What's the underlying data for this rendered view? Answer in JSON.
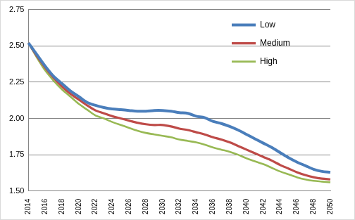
{
  "chart_data": {
    "type": "line",
    "categories": [
      "2014",
      null,
      "2016",
      null,
      "2018",
      null,
      "2020",
      null,
      "2022",
      null,
      "2024",
      null,
      "2026",
      null,
      "2028",
      null,
      "2030",
      null,
      "2032",
      null,
      "2034",
      null,
      "2036",
      null,
      "2038",
      null,
      "2040",
      null,
      "2042",
      null,
      "2044",
      null,
      "2046",
      null,
      "2048",
      null,
      "2050"
    ],
    "series": [
      {
        "name": "Low",
        "color": "#4a7ebb",
        "values": [
          2.52,
          2.44,
          2.36,
          2.29,
          2.24,
          2.19,
          2.15,
          2.11,
          2.09,
          2.075,
          2.065,
          2.06,
          2.055,
          2.05,
          2.05,
          2.055,
          2.055,
          2.05,
          2.04,
          2.035,
          2.015,
          2.005,
          1.98,
          1.965,
          1.945,
          1.92,
          1.89,
          1.86,
          1.83,
          1.8,
          1.765,
          1.73,
          1.7,
          1.675,
          1.65,
          1.635,
          1.63
        ]
      },
      {
        "name": "Medium",
        "color": "#be4b48",
        "values": [
          2.52,
          2.43,
          2.35,
          2.28,
          2.22,
          2.17,
          2.13,
          2.09,
          2.055,
          2.035,
          2.015,
          2.0,
          1.985,
          1.97,
          1.96,
          1.955,
          1.955,
          1.945,
          1.93,
          1.92,
          1.905,
          1.89,
          1.87,
          1.855,
          1.835,
          1.81,
          1.785,
          1.76,
          1.735,
          1.71,
          1.68,
          1.655,
          1.63,
          1.61,
          1.595,
          1.585,
          1.58
        ]
      },
      {
        "name": "High",
        "color": "#98b954",
        "values": [
          2.52,
          2.42,
          2.33,
          2.26,
          2.2,
          2.15,
          2.1,
          2.06,
          2.02,
          2.0,
          1.975,
          1.955,
          1.935,
          1.915,
          1.9,
          1.89,
          1.88,
          1.87,
          1.855,
          1.845,
          1.835,
          1.82,
          1.8,
          1.785,
          1.77,
          1.75,
          1.725,
          1.705,
          1.685,
          1.66,
          1.635,
          1.615,
          1.595,
          1.58,
          1.57,
          1.565,
          1.56
        ]
      }
    ],
    "ylim": [
      1.5,
      2.75
    ],
    "yticks": [
      {
        "value": 1.5,
        "label": "1.50"
      },
      {
        "value": 1.75,
        "label": "1.75"
      },
      {
        "value": 2.0,
        "label": "2.00"
      },
      {
        "value": 2.25,
        "label": "2.25"
      },
      {
        "value": 2.5,
        "label": "2.50"
      },
      {
        "value": 2.75,
        "label": "2.75"
      }
    ],
    "grid": true,
    "legend": "right"
  }
}
